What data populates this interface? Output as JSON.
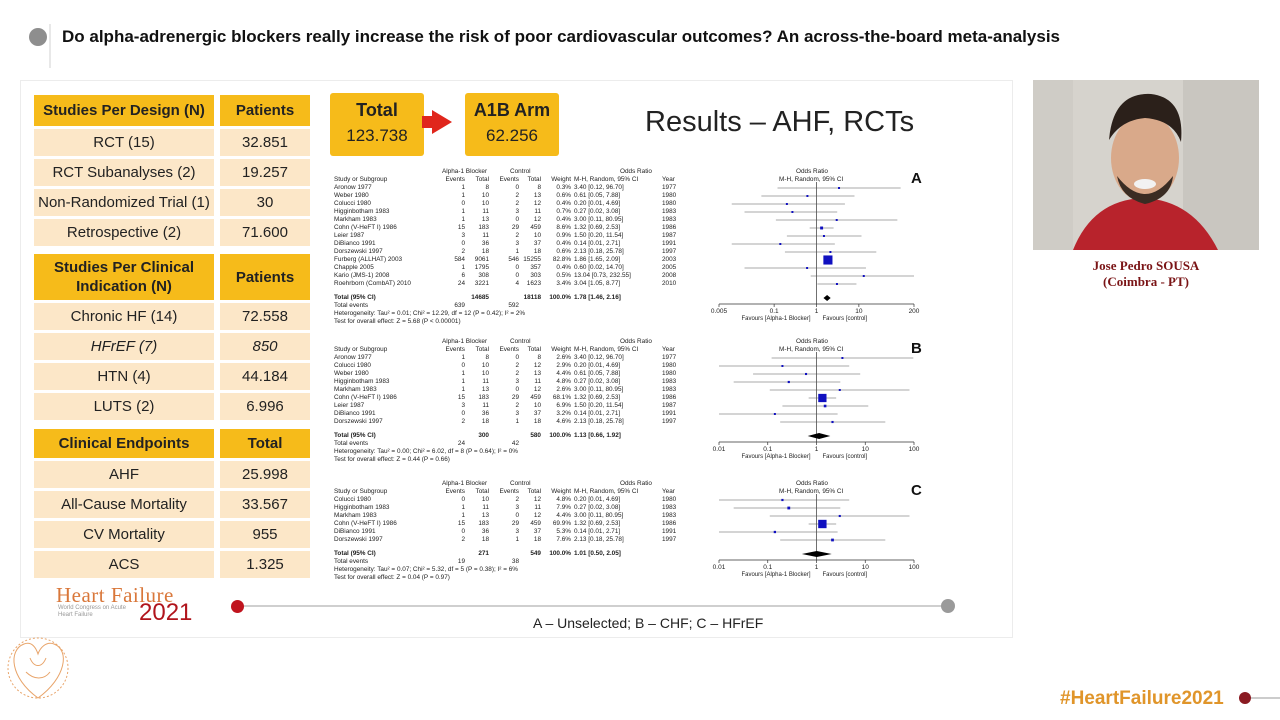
{
  "title": "Do alpha-adrenergic blockers really increase the risk of poor cardiovascular outcomes? An across-the-board meta-analysis",
  "design_table": {
    "headers": [
      "Studies Per Design (N)",
      "Patients"
    ],
    "rows": [
      [
        "RCT (15)",
        "32.851"
      ],
      [
        "RCT Subanalyses (2)",
        "19.257"
      ],
      [
        "Non-Randomized Trial (1)",
        "30"
      ],
      [
        "Retrospective (2)",
        "71.600"
      ]
    ]
  },
  "indication_table": {
    "headers": [
      "Studies Per Clinical Indication (N)",
      "Patients"
    ],
    "rows": [
      [
        "Chronic HF (14)",
        "72.558"
      ],
      [
        "HFrEF (7)",
        "850"
      ],
      [
        "HTN (4)",
        "44.184"
      ],
      [
        "LUTS (2)",
        "6.996"
      ]
    ]
  },
  "endpoints_table": {
    "headers": [
      "Clinical Endpoints",
      "Total"
    ],
    "rows": [
      [
        "AHF",
        "25.998"
      ],
      [
        "All-Cause Mortality",
        "33.567"
      ],
      [
        "CV Mortality",
        "955"
      ],
      [
        "ACS",
        "1.325"
      ]
    ]
  },
  "total_box": {
    "label": "Total",
    "value": "123.738"
  },
  "a1b_box": {
    "label": "A1B Arm",
    "value": "62.256"
  },
  "results_title": "Results – AHF, RCTs",
  "caption": "A – Unselected; B – CHF; C – HFrEF",
  "speaker": {
    "name": "Jose Pedro SOUSA",
    "affiliation": "(Coimbra - PT)"
  },
  "hashtag": "#HeartFailure2021",
  "logo": {
    "line1": "Heart Failure",
    "year": "2021",
    "sub": "World Congress on Acute Heart Failure"
  },
  "forest": [
    {
      "letter": "A",
      "header_group": "Alpha-1 Blocker",
      "header_control": "Control",
      "header_or": "Odds Ratio",
      "header_or2": "Odds Ratio",
      "columns": [
        "Study or Subgroup",
        "Events",
        "Total",
        "Events",
        "Total",
        "Weight",
        "M-H, Random, 95% CI",
        "Year",
        "M-H, Random, 95% CI"
      ],
      "rows": [
        [
          "Aronow 1977",
          "1",
          "8",
          "0",
          "8",
          "0.3%",
          "3.40 [0.12, 96.70]",
          "1977"
        ],
        [
          "Weber 1980",
          "1",
          "10",
          "2",
          "13",
          "0.6%",
          "0.61 [0.05, 7.88]",
          "1980"
        ],
        [
          "Colucci 1980",
          "0",
          "10",
          "2",
          "12",
          "0.4%",
          "0.20 [0.01, 4.69]",
          "1980"
        ],
        [
          "Higginbotham 1983",
          "1",
          "11",
          "3",
          "11",
          "0.7%",
          "0.27 [0.02, 3.08]",
          "1983"
        ],
        [
          "Markham 1983",
          "1",
          "13",
          "0",
          "12",
          "0.4%",
          "3.00 [0.11, 80.95]",
          "1983"
        ],
        [
          "Cohn (V-HeFT I) 1986",
          "15",
          "183",
          "29",
          "459",
          "8.6%",
          "1.32 [0.69, 2.53]",
          "1986"
        ],
        [
          "Leier 1987",
          "3",
          "11",
          "2",
          "10",
          "0.9%",
          "1.50 [0.20, 11.54]",
          "1987"
        ],
        [
          "DiBianco 1991",
          "0",
          "36",
          "3",
          "37",
          "0.4%",
          "0.14 [0.01, 2.71]",
          "1991"
        ],
        [
          "Dorszewski 1997",
          "2",
          "18",
          "1",
          "18",
          "0.6%",
          "2.13 [0.18, 25.78]",
          "1997"
        ],
        [
          "Furberg (ALLHAT) 2003",
          "584",
          "9061",
          "546",
          "15255",
          "82.8%",
          "1.86 [1.65, 2.09]",
          "2003"
        ],
        [
          "Chapple 2005",
          "1",
          "1795",
          "0",
          "357",
          "0.4%",
          "0.60 [0.02, 14.70]",
          "2005"
        ],
        [
          "Kario (JMS-1) 2008",
          "6",
          "308",
          "0",
          "303",
          "0.5%",
          "13.04 [0.73, 232.55]",
          "2008"
        ],
        [
          "Roehrborn (CombAT) 2010",
          "24",
          "3221",
          "4",
          "1623",
          "3.4%",
          "3.04 [1.05, 8.77]",
          "2010"
        ]
      ],
      "total": [
        "Total (95% CI)",
        "",
        "14685",
        "",
        "18118",
        "100.0%",
        "1.78 [1.46, 2.16]",
        ""
      ],
      "events": [
        "Total events",
        "639",
        "",
        "592",
        "",
        "",
        "",
        ""
      ],
      "heterogeneity": "Heterogeneity: Tau² = 0.01; Chi² = 12.29, df = 12 (P = 0.42); I² = 2%",
      "overall": "Test for overall effect: Z = 5.68 (P < 0.00001)",
      "ticks": [
        "0.005",
        "0.1",
        "1",
        "10",
        "200"
      ],
      "favours_left": "Favours [Alpha-1 Blocker]",
      "favours_right": "Favours [control]",
      "estimates": [
        3.4,
        0.61,
        0.2,
        0.27,
        3.0,
        1.32,
        1.5,
        0.14,
        2.13,
        1.86,
        0.6,
        13.04,
        3.04
      ],
      "lows": [
        0.12,
        0.05,
        0.01,
        0.02,
        0.11,
        0.69,
        0.2,
        0.01,
        0.18,
        1.65,
        0.02,
        0.73,
        1.05
      ],
      "highs": [
        96.7,
        7.88,
        4.69,
        3.08,
        80.95,
        2.53,
        11.54,
        2.71,
        25.78,
        2.09,
        14.7,
        232.55,
        8.77
      ],
      "weights": [
        0.3,
        0.6,
        0.4,
        0.7,
        0.4,
        8.6,
        0.9,
        0.4,
        0.6,
        82.8,
        0.4,
        0.5,
        3.4
      ],
      "pooled": [
        1.78,
        1.46,
        2.16
      ],
      "range": [
        0.005,
        200
      ]
    },
    {
      "letter": "B",
      "header_group": "Alpha-1 Blocker",
      "header_control": "Control",
      "header_or": "Odds Ratio",
      "header_or2": "Odds Ratio",
      "columns": [
        "Study or Subgroup",
        "Events",
        "Total",
        "Events",
        "Total",
        "Weight",
        "M-H, Random, 95% CI",
        "Year",
        "M-H, Random, 95% CI"
      ],
      "rows": [
        [
          "Aronow 1977",
          "1",
          "8",
          "0",
          "8",
          "2.6%",
          "3.40 [0.12, 96.70]",
          "1977"
        ],
        [
          "Colucci 1980",
          "0",
          "10",
          "2",
          "12",
          "2.9%",
          "0.20 [0.01, 4.69]",
          "1980"
        ],
        [
          "Weber 1980",
          "1",
          "10",
          "2",
          "13",
          "4.4%",
          "0.61 [0.05, 7.88]",
          "1980"
        ],
        [
          "Higginbotham 1983",
          "1",
          "11",
          "3",
          "11",
          "4.8%",
          "0.27 [0.02, 3.08]",
          "1983"
        ],
        [
          "Markham 1983",
          "1",
          "13",
          "0",
          "12",
          "2.6%",
          "3.00 [0.11, 80.95]",
          "1983"
        ],
        [
          "Cohn (V-HeFT I) 1986",
          "15",
          "183",
          "29",
          "459",
          "68.1%",
          "1.32 [0.69, 2.53]",
          "1986"
        ],
        [
          "Leier 1987",
          "3",
          "11",
          "2",
          "10",
          "6.9%",
          "1.50 [0.20, 11.54]",
          "1987"
        ],
        [
          "DiBianco 1991",
          "0",
          "36",
          "3",
          "37",
          "3.2%",
          "0.14 [0.01, 2.71]",
          "1991"
        ],
        [
          "Dorszewski 1997",
          "2",
          "18",
          "1",
          "18",
          "4.6%",
          "2.13 [0.18, 25.78]",
          "1997"
        ]
      ],
      "total": [
        "Total (95% CI)",
        "",
        "300",
        "",
        "580",
        "100.0%",
        "1.13 [0.66, 1.92]",
        ""
      ],
      "events": [
        "Total events",
        "24",
        "",
        "42",
        "",
        "",
        "",
        ""
      ],
      "heterogeneity": "Heterogeneity: Tau² = 0.00; Chi² = 6.02, df = 8 (P = 0.64); I² = 0%",
      "overall": "Test for overall effect: Z = 0.44 (P = 0.66)",
      "ticks": [
        "0.01",
        "0.1",
        "1",
        "10",
        "100"
      ],
      "favours_left": "Favours [Alpha-1 Blocker]",
      "favours_right": "Favours [control]",
      "estimates": [
        3.4,
        0.2,
        0.61,
        0.27,
        3.0,
        1.32,
        1.5,
        0.14,
        2.13
      ],
      "lows": [
        0.12,
        0.01,
        0.05,
        0.02,
        0.11,
        0.69,
        0.2,
        0.01,
        0.18
      ],
      "highs": [
        96.7,
        4.69,
        7.88,
        3.08,
        80.95,
        2.53,
        11.54,
        2.71,
        25.78
      ],
      "weights": [
        2.6,
        2.9,
        4.4,
        4.8,
        2.6,
        68.1,
        6.9,
        3.2,
        4.6
      ],
      "pooled": [
        1.13,
        0.66,
        1.92
      ],
      "range": [
        0.01,
        100
      ]
    },
    {
      "letter": "C",
      "header_group": "Alpha-1 Blocker",
      "header_control": "Control",
      "header_or": "Odds Ratio",
      "header_or2": "Odds Ratio",
      "columns": [
        "Study or Subgroup",
        "Events",
        "Total",
        "Events",
        "Total",
        "Weight",
        "M-H, Random, 95% CI",
        "Year",
        "M-H, Random, 95% CI"
      ],
      "rows": [
        [
          "Colucci 1980",
          "0",
          "10",
          "2",
          "12",
          "4.8%",
          "0.20 [0.01, 4.69]",
          "1980"
        ],
        [
          "Higginbotham 1983",
          "1",
          "11",
          "3",
          "11",
          "7.9%",
          "0.27 [0.02, 3.08]",
          "1983"
        ],
        [
          "Markham 1983",
          "1",
          "13",
          "0",
          "12",
          "4.4%",
          "3.00 [0.11, 80.95]",
          "1983"
        ],
        [
          "Cohn (V-HeFT I) 1986",
          "15",
          "183",
          "29",
          "459",
          "69.9%",
          "1.32 [0.69, 2.53]",
          "1986"
        ],
        [
          "DiBianco 1991",
          "0",
          "36",
          "3",
          "37",
          "5.3%",
          "0.14 [0.01, 2.71]",
          "1991"
        ],
        [
          "Dorszewski 1997",
          "2",
          "18",
          "1",
          "18",
          "7.6%",
          "2.13 [0.18, 25.78]",
          "1997"
        ]
      ],
      "total": [
        "Total (95% CI)",
        "",
        "271",
        "",
        "549",
        "100.0%",
        "1.01 [0.50, 2.05]",
        ""
      ],
      "events": [
        "Total events",
        "19",
        "",
        "38",
        "",
        "",
        "",
        ""
      ],
      "heterogeneity": "Heterogeneity: Tau² = 0.07; Chi² = 5.32, df = 5 (P = 0.38); I² = 6%",
      "overall": "Test for overall effect: Z = 0.04 (P = 0.97)",
      "ticks": [
        "0.01",
        "0.1",
        "1",
        "10",
        "100"
      ],
      "favours_left": "Favours [Alpha-1 Blocker]",
      "favours_right": "Favours [control]",
      "estimates": [
        0.2,
        0.27,
        3.0,
        1.32,
        0.14,
        2.13
      ],
      "lows": [
        0.01,
        0.02,
        0.11,
        0.69,
        0.01,
        0.18
      ],
      "highs": [
        4.69,
        3.08,
        80.95,
        2.53,
        2.71,
        25.78
      ],
      "weights": [
        4.8,
        7.9,
        4.4,
        69.9,
        5.3,
        7.6
      ],
      "pooled": [
        1.01,
        0.5,
        2.05
      ],
      "range": [
        0.01,
        100
      ]
    }
  ],
  "colors": {
    "accent": "#f6bb1a",
    "cell": "#fce7c8",
    "brand_red": "#b0141c",
    "arrow": "#e0261c",
    "square": "#1010c0"
  }
}
